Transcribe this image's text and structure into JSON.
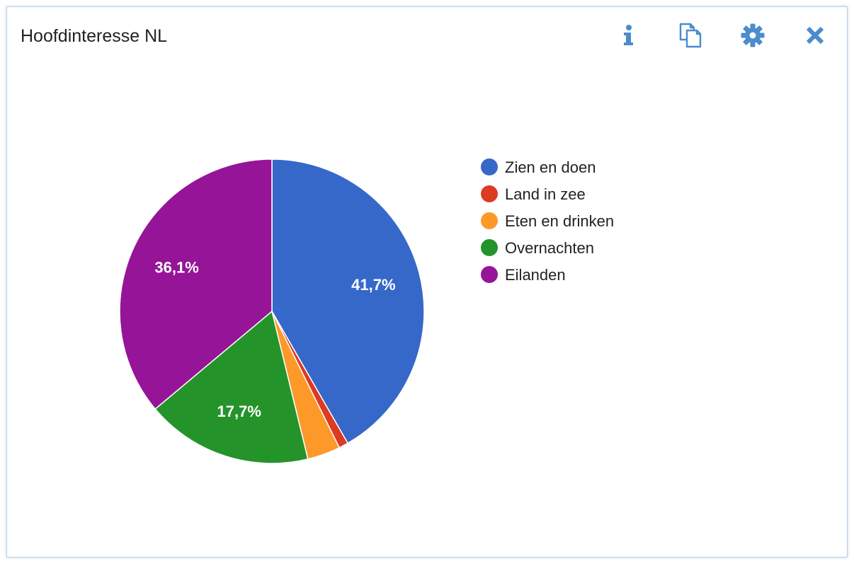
{
  "widget": {
    "title": "Hoofdinteresse NL",
    "toolbar": [
      {
        "name": "info-icon",
        "label": "info"
      },
      {
        "name": "copy-icon",
        "label": "copy"
      },
      {
        "name": "gear-icon",
        "label": "settings"
      },
      {
        "name": "close-icon",
        "label": "close"
      }
    ],
    "accent_color": "#4a8ccc"
  },
  "chart_data": {
    "type": "pie",
    "title": "",
    "slices": [
      {
        "label": "Zien en doen",
        "value": 41.7,
        "display": "41,7%",
        "color": "#3668c9"
      },
      {
        "label": "Land in zee",
        "value": 1.0,
        "display": "",
        "color": "#dc3a22"
      },
      {
        "label": "Eten en drinken",
        "value": 3.5,
        "display": "",
        "color": "#fd9929"
      },
      {
        "label": "Overnachten",
        "value": 17.7,
        "display": "17,7%",
        "color": "#24942a"
      },
      {
        "label": "Eilanden",
        "value": 36.1,
        "display": "36,1%",
        "color": "#961497"
      }
    ],
    "legend_position": "right"
  }
}
